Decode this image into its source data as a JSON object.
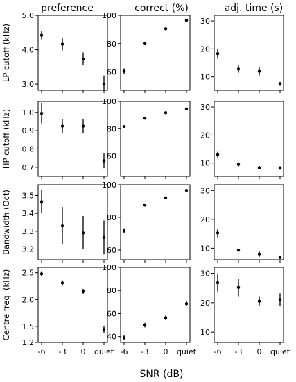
{
  "figure": {
    "xlabel": "SNR (dB)",
    "column_titles": [
      "preference",
      "correct (%)",
      "adj. time (s)"
    ],
    "row_labels": [
      "LP cutoff (kHz)",
      "HP cutoff (kHz)",
      "Bandwidth (Oct)",
      "Centre freq. (kHz)"
    ]
  },
  "colors": {
    "marker": "#000000",
    "axes": "#000000",
    "background": "#ffffff"
  },
  "chart_data": [
    {
      "type": "scatter",
      "row": 0,
      "col": 0,
      "title": "preference",
      "ylabel": "LP cutoff (kHz)",
      "categories": [
        "-6",
        "-3",
        "0",
        "quiet"
      ],
      "ylim": [
        2.82,
        5.0
      ],
      "yticks": [
        3.0,
        4.0,
        5.0
      ],
      "ytick_labels": [
        "3.0",
        "4.0",
        "5.0"
      ],
      "values": [
        4.42,
        4.16,
        3.73,
        3.0
      ],
      "errors": [
        [
          4.3,
          4.54
        ],
        [
          3.98,
          4.34
        ],
        [
          3.55,
          3.92
        ],
        [
          2.82,
          3.25
        ]
      ]
    },
    {
      "type": "scatter",
      "row": 0,
      "col": 1,
      "title": "correct (%)",
      "ylabel": "",
      "categories": [
        "-6",
        "-3",
        "0",
        "quiet"
      ],
      "ylim": [
        47,
        100
      ],
      "yticks": [
        60,
        80,
        100
      ],
      "ytick_labels": [
        "60",
        "80",
        "100"
      ],
      "values": [
        60.5,
        80.0,
        90.5,
        96.5
      ],
      "errors": [
        [
          58.5,
          62.5
        ],
        [
          79,
          81
        ],
        [
          90,
          91
        ],
        [
          96,
          97
        ]
      ]
    },
    {
      "type": "scatter",
      "row": 0,
      "col": 2,
      "title": "adj. time (s)",
      "ylabel": "",
      "categories": [
        "-6",
        "-3",
        "0",
        "quiet"
      ],
      "ylim": [
        5.2,
        32
      ],
      "yticks": [
        10,
        20,
        30
      ],
      "ytick_labels": [
        "10",
        "20",
        "30"
      ],
      "values": [
        18.3,
        12.8,
        12.0,
        7.5
      ],
      "errors": [
        [
          16.5,
          20.1
        ],
        [
          11.5,
          14.1
        ],
        [
          10.5,
          13.5
        ],
        [
          6.8,
          8.2
        ]
      ]
    },
    {
      "type": "scatter",
      "row": 1,
      "col": 0,
      "title": "",
      "ylabel": "HP cutoff (kHz)",
      "categories": [
        "-6",
        "-3",
        "0",
        "quiet"
      ],
      "ylim": [
        0.65,
        1.06
      ],
      "yticks": [
        0.7,
        0.8,
        0.9,
        1.0
      ],
      "ytick_labels": [
        "0.7",
        "0.8",
        "0.9",
        "1.0"
      ],
      "values": [
        0.995,
        0.925,
        0.925,
        0.735
      ],
      "errors": [
        [
          0.94,
          1.05
        ],
        [
          0.885,
          0.965
        ],
        [
          0.885,
          0.965
        ],
        [
          0.695,
          0.775
        ]
      ]
    },
    {
      "type": "scatter",
      "row": 1,
      "col": 1,
      "title": "",
      "ylabel": "",
      "categories": [
        "-6",
        "-3",
        "0",
        "quiet"
      ],
      "ylim": [
        45,
        100
      ],
      "yticks": [
        60,
        80,
        100
      ],
      "ytick_labels": [
        "60",
        "80",
        "100"
      ],
      "values": [
        81.5,
        87.7,
        91.7,
        94.5
      ],
      "errors": [
        [
          80.5,
          82.5
        ],
        [
          87,
          88.4
        ],
        [
          91.2,
          92.2
        ],
        [
          94,
          95
        ]
      ]
    },
    {
      "type": "scatter",
      "row": 1,
      "col": 2,
      "title": "",
      "ylabel": "",
      "categories": [
        "-6",
        "-3",
        "0",
        "quiet"
      ],
      "ylim": [
        5.2,
        32
      ],
      "yticks": [
        10,
        20,
        30
      ],
      "ytick_labels": [
        "10",
        "20",
        "30"
      ],
      "values": [
        13.0,
        9.5,
        8.3,
        8.2
      ],
      "errors": [
        [
          12.0,
          14.0
        ],
        [
          8.8,
          10.2
        ],
        [
          7.7,
          8.9
        ],
        [
          7.6,
          8.8
        ]
      ]
    },
    {
      "type": "scatter",
      "row": 2,
      "col": 0,
      "title": "",
      "ylabel": "Bandwidth (Oct)",
      "categories": [
        "-6",
        "-3",
        "0",
        "quiet"
      ],
      "ylim": [
        3.14,
        3.56
      ],
      "yticks": [
        3.2,
        3.3,
        3.4,
        3.5
      ],
      "ytick_labels": [
        "3.2",
        "3.3",
        "3.4",
        "3.5"
      ],
      "values": [
        3.465,
        3.33,
        3.29,
        3.265
      ],
      "errors": [
        [
          3.4,
          3.53
        ],
        [
          3.225,
          3.435
        ],
        [
          3.2,
          3.385
        ],
        [
          3.17,
          3.36
        ]
      ]
    },
    {
      "type": "scatter",
      "row": 2,
      "col": 1,
      "title": "",
      "ylabel": "",
      "categories": [
        "-6",
        "-3",
        "0",
        "quiet"
      ],
      "ylim": [
        54,
        100
      ],
      "yticks": [
        60,
        80,
        100
      ],
      "ytick_labels": [
        "60",
        "80",
        "100"
      ],
      "values": [
        71.8,
        87.5,
        92.0,
        96.5
      ],
      "errors": [
        [
          70.3,
          73.3
        ],
        [
          87,
          88
        ],
        [
          91.5,
          92.5
        ],
        [
          96,
          97
        ]
      ]
    },
    {
      "type": "scatter",
      "row": 2,
      "col": 2,
      "title": "",
      "ylabel": "",
      "categories": [
        "-6",
        "-3",
        "0",
        "quiet"
      ],
      "ylim": [
        6.0,
        32
      ],
      "yticks": [
        10,
        20,
        30
      ],
      "ytick_labels": [
        "10",
        "20",
        "30"
      ],
      "values": [
        15.3,
        9.3,
        8.0,
        6.8
      ],
      "errors": [
        [
          13.8,
          16.8
        ],
        [
          8.8,
          9.8
        ],
        [
          7.0,
          9.0
        ],
        [
          6.3,
          7.3
        ]
      ]
    },
    {
      "type": "scatter",
      "row": 3,
      "col": 0,
      "title": "",
      "ylabel": "Centre freq. (kHz)",
      "categories": [
        "-6",
        "-3",
        "0",
        "quiet"
      ],
      "ylim": [
        1.2,
        2.6
      ],
      "yticks": [
        1.2,
        1.5,
        2.0,
        2.5
      ],
      "ytick_labels": [
        "1.2",
        "1.5",
        "2.0",
        "2.5"
      ],
      "values": [
        2.48,
        2.31,
        2.15,
        1.44
      ],
      "errors": [
        [
          2.43,
          2.53
        ],
        [
          2.26,
          2.36
        ],
        [
          2.1,
          2.2
        ],
        [
          1.38,
          1.5
        ]
      ]
    },
    {
      "type": "scatter",
      "row": 3,
      "col": 1,
      "title": "",
      "ylabel": "",
      "categories": [
        "-6",
        "-3",
        "0",
        "quiet"
      ],
      "ylim": [
        35,
        100
      ],
      "yticks": [
        40,
        60,
        80,
        100
      ],
      "ytick_labels": [
        "40",
        "60",
        "80",
        "100"
      ],
      "values": [
        39.0,
        50.0,
        56.3,
        68.5
      ],
      "errors": [
        [
          37,
          41
        ],
        [
          48,
          52
        ],
        [
          54.3,
          58.3
        ],
        [
          66.5,
          70.5
        ]
      ]
    },
    {
      "type": "scatter",
      "row": 3,
      "col": 2,
      "title": "",
      "ylabel": "",
      "categories": [
        "-6",
        "-3",
        "0",
        "quiet"
      ],
      "ylim": [
        6.5,
        32
      ],
      "yticks": [
        10,
        20,
        30
      ],
      "ytick_labels": [
        "10",
        "20",
        "30"
      ],
      "values": [
        26.8,
        25.2,
        20.5,
        21.0
      ],
      "errors": [
        [
          23.8,
          29.8
        ],
        [
          22.2,
          28.2
        ],
        [
          18.8,
          22.2
        ],
        [
          18.8,
          23.2
        ]
      ]
    }
  ]
}
